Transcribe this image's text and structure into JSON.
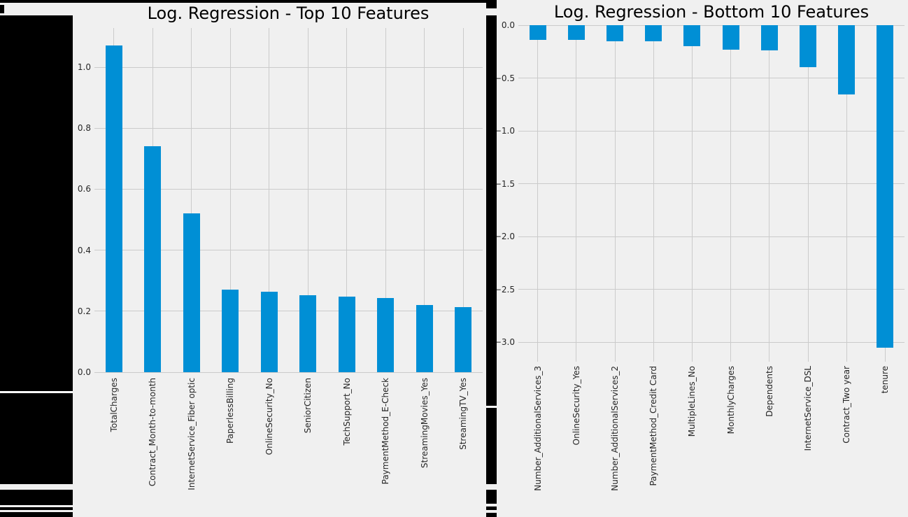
{
  "figure": {
    "background_color": "#f0f0f0",
    "grid_color": "#cbcbcb",
    "bar_color": "#008fd5",
    "tick_text_color": "#262626",
    "title_color": "#000000",
    "page_mask_color": "#000000"
  },
  "chart_data": [
    {
      "type": "bar",
      "title": "Log. Regression - Top 10 Features",
      "categories": [
        "TotalCharges",
        "Contract_Month-to-month",
        "InternetService_Fiber optic",
        "PaperlessBilling",
        "OnlineSecurity_No",
        "SeniorCitizen",
        "TechSupport_No",
        "PaymentMethod_E-Check",
        "StreamingMovies_Yes",
        "StreamingTV_Yes"
      ],
      "values": [
        1.07,
        0.74,
        0.52,
        0.27,
        0.263,
        0.252,
        0.247,
        0.242,
        0.221,
        0.214
      ],
      "ytick_values": [
        0.0,
        0.2,
        0.4,
        0.6,
        0.8,
        1.0
      ],
      "ytick_labels": [
        "0.0",
        "0.2",
        "0.4",
        "0.6",
        "0.8",
        "1.0"
      ],
      "ylim": [
        0,
        1.13
      ],
      "xlabel": "",
      "ylabel": "",
      "grid": true,
      "legend": null,
      "bar_orientation": "vertical",
      "x_tick_rotation_deg": 90
    },
    {
      "type": "bar",
      "title": "Log. Regression - Bottom 10 Features",
      "categories": [
        "Number_AdditionalServices_3",
        "OnlineSecurity_Yes",
        "Number_AdditionalServices_2",
        "PaymentMethod_Credit Card",
        "MultipleLines_No",
        "MonthlyCharges",
        "Dependents",
        "InternetService_DSL",
        "Contract_Two year",
        "tenure"
      ],
      "values": [
        -0.14,
        -0.14,
        -0.15,
        -0.15,
        -0.2,
        -0.23,
        -0.24,
        -0.4,
        -0.655,
        -3.05
      ],
      "ytick_values": [
        0.0,
        -0.5,
        -1.0,
        -1.5,
        -2.0,
        -2.5,
        -3.0
      ],
      "ytick_labels": [
        "0.0",
        "−0.5",
        "−1.0",
        "−1.5",
        "−2.0",
        "−2.5",
        "−3.0"
      ],
      "ylim": [
        -3.19,
        0
      ],
      "xlabel": "",
      "ylabel": "",
      "grid": true,
      "legend": null,
      "bar_orientation": "vertical",
      "x_tick_rotation_deg": 90
    }
  ]
}
